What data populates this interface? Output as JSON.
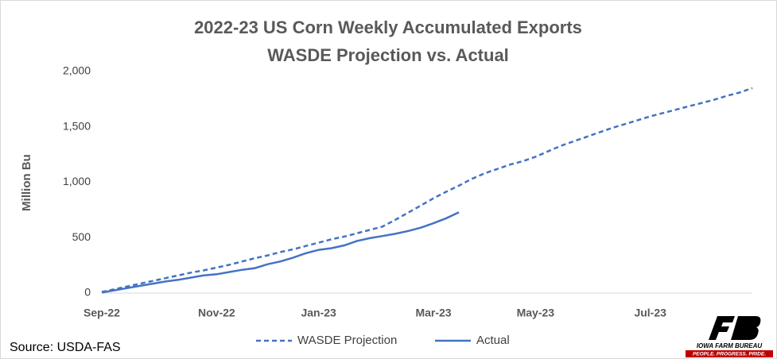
{
  "chart_data": {
    "type": "line",
    "title": "2022-23 US Corn Weekly Accumulated Exports",
    "subtitle": "WASDE Projection vs. Actual",
    "y_label": "Million Bu",
    "source": "Source: USDA-FAS",
    "logo": {
      "name": "IOWA FARM BUREAU",
      "tagline": "PEOPLE. PROGRESS. PRIDE."
    },
    "categories": [
      "Sep-22",
      null,
      null,
      null,
      null,
      null,
      null,
      null,
      null,
      "Nov-22",
      null,
      null,
      null,
      null,
      null,
      null,
      null,
      "Jan-23",
      null,
      null,
      null,
      null,
      null,
      null,
      null,
      null,
      "Mar-23",
      null,
      null,
      null,
      null,
      null,
      null,
      null,
      "May-23",
      null,
      null,
      null,
      null,
      null,
      null,
      null,
      null,
      "Jul-23",
      null,
      null,
      null,
      null,
      null,
      null,
      null,
      null
    ],
    "series": [
      {
        "name": "WASDE Projection",
        "color": "#4472c4",
        "dash": true,
        "values": [
          10,
          35,
          60,
          85,
          110,
          135,
          160,
          185,
          205,
          230,
          255,
          285,
          315,
          340,
          370,
          395,
          425,
          455,
          485,
          510,
          540,
          570,
          600,
          660,
          725,
          790,
          855,
          915,
          970,
          1030,
          1080,
          1120,
          1160,
          1190,
          1230,
          1280,
          1330,
          1370,
          1410,
          1450,
          1490,
          1525,
          1560,
          1595,
          1625,
          1655,
          1685,
          1715,
          1745,
          1780,
          1810,
          1850
        ]
      },
      {
        "name": "Actual",
        "color": "#4472c4",
        "dash": false,
        "values": [
          5,
          25,
          45,
          65,
          85,
          105,
          120,
          140,
          160,
          170,
          190,
          210,
          225,
          260,
          285,
          320,
          360,
          390,
          405,
          430,
          470,
          495,
          515,
          535,
          560,
          590,
          630,
          675,
          730,
          null,
          null,
          null,
          null,
          null,
          null,
          null,
          null,
          null,
          null,
          null,
          null,
          null,
          null,
          null,
          null,
          null,
          null,
          null,
          null,
          null,
          null,
          null
        ]
      }
    ],
    "ylim": [
      0,
      2000
    ],
    "yticks": [
      0,
      500,
      {
        "value": 1000,
        "label": "1,000"
      },
      {
        "value": 1500,
        "label": "1,500"
      },
      {
        "value": 2000,
        "label": "2,000"
      }
    ],
    "grid": false,
    "legend": "bottom"
  }
}
